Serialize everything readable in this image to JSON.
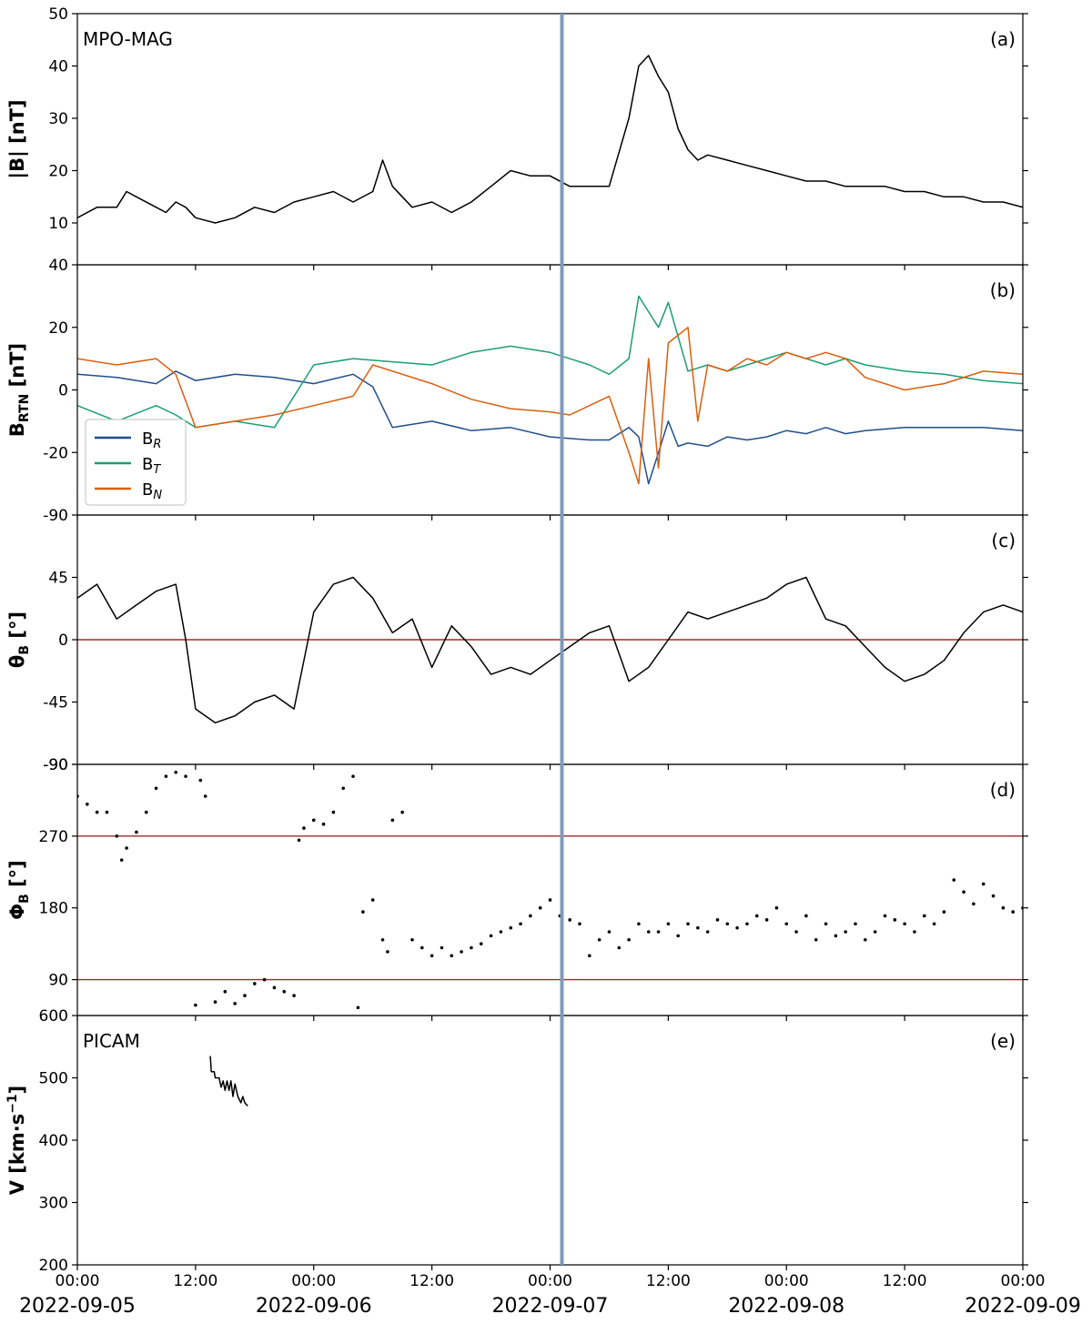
{
  "chart_data": [
    {
      "panel": "a",
      "type": "line",
      "instrument_label": "MPO-MAG",
      "panel_label": "(a)",
      "ylabel": "|B| [nT]",
      "ylim": [
        2,
        50
      ],
      "yticks": [
        10,
        20,
        30,
        40,
        50
      ],
      "series": [
        {
          "color": "#000000",
          "x": [
            0,
            2,
            4,
            5,
            6,
            8,
            9,
            10,
            11,
            12,
            14,
            16,
            18,
            20,
            22,
            24,
            26,
            28,
            30,
            31,
            32,
            34,
            36,
            38,
            40,
            42,
            44,
            46,
            48,
            50,
            52,
            54,
            56,
            57,
            58,
            59,
            60,
            61,
            62,
            63,
            64,
            66,
            68,
            70,
            72,
            74,
            76,
            78,
            80,
            82,
            84,
            86,
            88,
            90,
            92,
            94,
            96
          ],
          "y": [
            11,
            13,
            13,
            16,
            15,
            13,
            12,
            14,
            13,
            11,
            10,
            11,
            13,
            12,
            14,
            15,
            16,
            14,
            16,
            22,
            17,
            13,
            14,
            12,
            14,
            17,
            20,
            19,
            19,
            17,
            17,
            17,
            30,
            40,
            42,
            38,
            35,
            28,
            24,
            22,
            23,
            22,
            21,
            20,
            19,
            18,
            18,
            17,
            17,
            17,
            16,
            16,
            15,
            15,
            14,
            14,
            13
          ]
        }
      ]
    },
    {
      "panel": "b",
      "type": "line",
      "panel_label": "(b)",
      "ylabel": "B_RTN [nT]",
      "ylabel_main": "B",
      "ylabel_sub": "RTN",
      "ylabel_unit": " [nT]",
      "ylim": [
        -40,
        40
      ],
      "yticks": [
        -20,
        0,
        20,
        40
      ],
      "series": [
        {
          "name": "B_R",
          "legend_main": "B",
          "legend_sub": "R",
          "color": "#1f4e8c",
          "x": [
            0,
            4,
            8,
            10,
            12,
            16,
            20,
            24,
            28,
            30,
            32,
            36,
            40,
            44,
            48,
            52,
            54,
            56,
            57,
            58,
            59,
            60,
            61,
            62,
            64,
            66,
            68,
            70,
            72,
            74,
            76,
            78,
            80,
            84,
            88,
            92,
            96
          ],
          "y": [
            5,
            4,
            2,
            6,
            3,
            5,
            4,
            2,
            5,
            1,
            -12,
            -10,
            -13,
            -12,
            -15,
            -16,
            -16,
            -12,
            -15,
            -30,
            -20,
            -10,
            -18,
            -17,
            -18,
            -15,
            -16,
            -15,
            -13,
            -14,
            -12,
            -14,
            -13,
            -12,
            -12,
            -12,
            -13
          ]
        },
        {
          "name": "B_T",
          "legend_main": "B",
          "legend_sub": "T",
          "color": "#1a9e74",
          "x": [
            0,
            4,
            8,
            10,
            12,
            16,
            20,
            24,
            28,
            32,
            36,
            40,
            44,
            48,
            52,
            54,
            56,
            57,
            58,
            59,
            60,
            62,
            64,
            66,
            68,
            70,
            72,
            74,
            76,
            78,
            80,
            84,
            88,
            92,
            96
          ],
          "y": [
            -5,
            -10,
            -5,
            -8,
            -12,
            -10,
            -12,
            8,
            10,
            9,
            8,
            12,
            14,
            12,
            8,
            5,
            10,
            30,
            25,
            20,
            28,
            6,
            8,
            6,
            8,
            10,
            12,
            10,
            8,
            10,
            8,
            6,
            5,
            3,
            2
          ]
        },
        {
          "name": "B_N",
          "legend_main": "B",
          "legend_sub": "N",
          "color": "#d95f0e",
          "x": [
            0,
            4,
            8,
            10,
            12,
            16,
            20,
            24,
            28,
            30,
            32,
            36,
            40,
            44,
            48,
            50,
            52,
            54,
            56,
            57,
            58,
            59,
            60,
            62,
            63,
            64,
            66,
            68,
            70,
            72,
            74,
            76,
            78,
            80,
            84,
            88,
            92,
            96
          ],
          "y": [
            10,
            8,
            10,
            5,
            -12,
            -10,
            -8,
            -5,
            -2,
            8,
            6,
            2,
            -3,
            -6,
            -7,
            -8,
            -5,
            -2,
            -20,
            -30,
            10,
            -25,
            15,
            20,
            -10,
            8,
            6,
            10,
            8,
            12,
            10,
            12,
            10,
            4,
            0,
            2,
            6,
            5
          ]
        }
      ],
      "legend_position": "lower-left"
    },
    {
      "panel": "c",
      "type": "line",
      "panel_label": "(c)",
      "ylabel": "θB [°]",
      "ylabel_main": "θ",
      "ylabel_sub": "B",
      "ylabel_unit": " [°]",
      "ylim": [
        -90,
        90
      ],
      "yticks": [
        -90,
        -45,
        0,
        45,
        90
      ],
      "tick_labels_shown": [
        "-45",
        "0",
        "45",
        "-90"
      ],
      "reference_line": 0,
      "series": [
        {
          "color": "#000000",
          "x": [
            0,
            2,
            4,
            6,
            8,
            10,
            11,
            12,
            14,
            16,
            18,
            20,
            22,
            24,
            26,
            28,
            30,
            32,
            34,
            36,
            38,
            40,
            42,
            44,
            46,
            48,
            50,
            52,
            54,
            56,
            58,
            60,
            62,
            64,
            66,
            68,
            70,
            72,
            74,
            76,
            78,
            80,
            82,
            84,
            86,
            88,
            90,
            92,
            94,
            96
          ],
          "y": [
            30,
            40,
            15,
            25,
            35,
            40,
            0,
            -50,
            -60,
            -55,
            -45,
            -40,
            -50,
            20,
            40,
            45,
            30,
            5,
            15,
            -20,
            10,
            -5,
            -25,
            -20,
            -25,
            -15,
            -5,
            5,
            10,
            -30,
            -20,
            0,
            20,
            15,
            20,
            25,
            30,
            40,
            45,
            15,
            10,
            -5,
            -20,
            -30,
            -25,
            -15,
            5,
            20,
            25,
            20
          ]
        }
      ]
    },
    {
      "panel": "d",
      "type": "scatter",
      "panel_label": "(d)",
      "ylabel": "ΦB [°]",
      "ylabel_main": "Φ",
      "ylabel_sub": "B",
      "ylabel_unit": " [°]",
      "ylim": [
        45,
        360
      ],
      "yticks": [
        90,
        180,
        270
      ],
      "top_tick_label": "-90",
      "reference_lines": [
        90,
        270
      ],
      "series": [
        {
          "color": "#000000",
          "x": [
            0,
            1,
            2,
            3,
            4,
            4.5,
            5,
            6,
            7,
            8,
            9,
            10,
            11,
            12,
            12.5,
            13,
            14,
            15,
            16,
            17,
            18,
            19,
            20,
            21,
            22,
            22.5,
            23,
            24,
            25,
            26,
            27,
            28,
            28.5,
            29,
            30,
            31,
            31.5,
            32,
            33,
            34,
            35,
            36,
            37,
            38,
            39,
            40,
            41,
            42,
            43,
            44,
            45,
            46,
            47,
            48,
            49,
            50,
            51,
            52,
            53,
            54,
            55,
            56,
            57,
            58,
            59,
            60,
            61,
            62,
            63,
            64,
            65,
            66,
            67,
            68,
            69,
            70,
            71,
            72,
            73,
            74,
            75,
            76,
            77,
            78,
            79,
            80,
            81,
            82,
            83,
            84,
            85,
            86,
            87,
            88,
            89,
            90,
            91,
            92,
            93,
            94,
            95,
            96
          ],
          "y": [
            320,
            310,
            300,
            300,
            270,
            240,
            255,
            275,
            300,
            330,
            345,
            350,
            345,
            58,
            340,
            320,
            62,
            75,
            60,
            70,
            85,
            90,
            80,
            75,
            70,
            265,
            280,
            290,
            285,
            300,
            330,
            345,
            55,
            175,
            190,
            140,
            125,
            290,
            300,
            140,
            130,
            120,
            130,
            120,
            125,
            130,
            135,
            145,
            150,
            155,
            160,
            170,
            180,
            190,
            170,
            165,
            160,
            120,
            140,
            150,
            130,
            140,
            160,
            150,
            150,
            160,
            145,
            160,
            155,
            150,
            165,
            160,
            155,
            160,
            170,
            165,
            180,
            160,
            150,
            170,
            140,
            160,
            145,
            150,
            160,
            140,
            150,
            170,
            165,
            160,
            150,
            170,
            160,
            175,
            215,
            200,
            185,
            210,
            195,
            180,
            175,
            180
          ]
        }
      ]
    },
    {
      "panel": "e",
      "type": "line",
      "instrument_label": "PICAM",
      "panel_label": "(e)",
      "ylabel": "V [km·s⁻¹]",
      "ylabel_main": "V [km·s",
      "ylabel_sup": "−1",
      "ylabel_end": "]",
      "ylim": [
        200,
        600
      ],
      "yticks": [
        200,
        300,
        400,
        500,
        600
      ],
      "series": [
        {
          "color": "#000000",
          "x": [
            13.5,
            13.6,
            13.9,
            14.0,
            14.4,
            14.6,
            14.8,
            15.0,
            15.2,
            15.4,
            15.6,
            15.8,
            16.0,
            16.3,
            16.6,
            16.8,
            17.0,
            17.3
          ],
          "y": [
            535,
            510,
            510,
            500,
            500,
            485,
            495,
            480,
            495,
            480,
            495,
            470,
            490,
            470,
            460,
            470,
            460,
            455
          ]
        }
      ]
    }
  ],
  "shared_x": {
    "unit": "hours since 2022-09-05 00:00",
    "xlim": [
      0,
      96
    ],
    "ticks": [
      0,
      12,
      24,
      36,
      48,
      60,
      72,
      84,
      96
    ],
    "tick_labels": [
      "00:00",
      "12:00",
      "00:00",
      "12:00",
      "00:00",
      "12:00",
      "00:00",
      "12:00",
      "00:00"
    ],
    "date_labels": [
      "2022-09-05",
      "2022-09-06",
      "2022-09-07",
      "2022-09-08",
      "2022-09-09"
    ],
    "event_marker_x": 49.2,
    "event_marker_color": "#7f9bb8"
  },
  "reference_line_color": "#a0282d"
}
